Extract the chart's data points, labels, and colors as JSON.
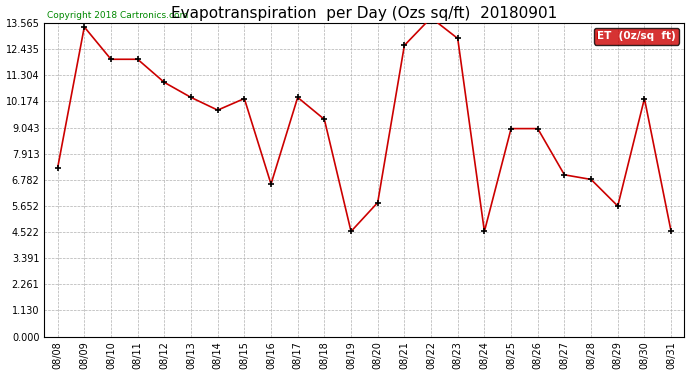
{
  "title": "Evapotranspiration  per Day (Ozs sq/ft)  20180901",
  "copyright": "Copyright 2018 Cartronics.com",
  "legend_label": "ET  (0z/sq  ft)",
  "dates": [
    "08/08",
    "08/09",
    "08/10",
    "08/11",
    "08/12",
    "08/13",
    "08/14",
    "08/15",
    "08/16",
    "08/17",
    "08/18",
    "08/19",
    "08/20",
    "08/21",
    "08/22",
    "08/23",
    "08/24",
    "08/25",
    "08/26",
    "08/27",
    "08/28",
    "08/29",
    "08/30",
    "08/31"
  ],
  "values": [
    7.3,
    13.4,
    12.0,
    12.0,
    11.0,
    10.35,
    9.8,
    10.3,
    6.6,
    10.35,
    9.4,
    4.55,
    5.8,
    12.6,
    13.8,
    12.9,
    4.55,
    9.0,
    9.0,
    7.0,
    6.8,
    5.65,
    10.3,
    4.55
  ],
  "y_ticks": [
    0.0,
    1.13,
    2.261,
    3.391,
    4.522,
    5.652,
    6.782,
    7.913,
    9.043,
    10.174,
    11.304,
    12.435,
    13.565
  ],
  "y_max": 13.565,
  "line_color": "#cc0000",
  "marker_color": "#000000",
  "background_color": "#ffffff",
  "grid_color": "#b0b0b0",
  "title_fontsize": 11,
  "copyright_color": "#008800",
  "copyright_fontsize": 6.5,
  "legend_bg": "#cc0000",
  "legend_text_color": "#ffffff",
  "tick_fontsize": 7,
  "marker_size": 5,
  "linewidth": 1.2
}
